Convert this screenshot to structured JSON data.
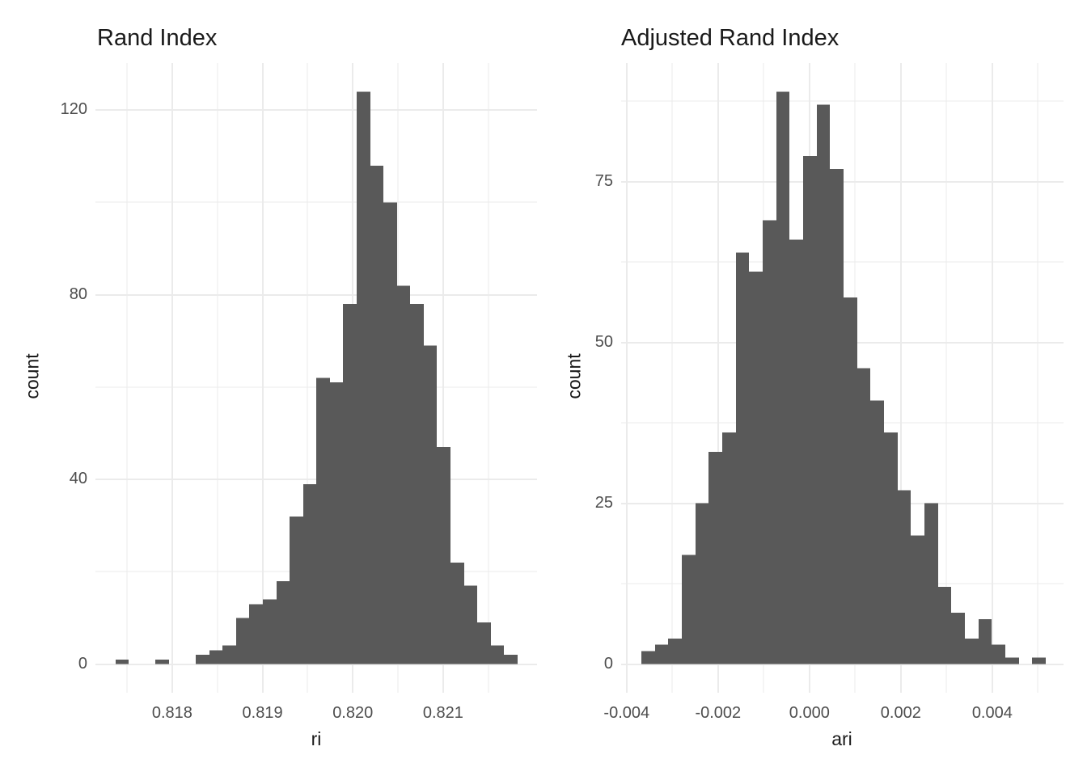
{
  "figure": {
    "background": "#ffffff",
    "bar_fill": "#595959",
    "grid_color": "#ebebeb",
    "tick_label_color": "#4d4d4d",
    "text_color": "#1a1a1a"
  },
  "chart_data": [
    {
      "type": "bar",
      "subtype": "histogram",
      "title": "Rand Index",
      "xlabel": "ri",
      "ylabel": "count",
      "grid": true,
      "legend_position": "none",
      "bar_color": "#595959",
      "xlim": [
        0.81715,
        0.82204
      ],
      "ylim": [
        -6.2,
        130.2
      ],
      "bin_start": 0.817372,
      "bin_width": 0.0001484,
      "counts": [
        1,
        0,
        0,
        1,
        0,
        0,
        2,
        3,
        4,
        10,
        13,
        14,
        18,
        32,
        39,
        62,
        61,
        78,
        124,
        108,
        100,
        82,
        78,
        69,
        47,
        22,
        17,
        9,
        4,
        2
      ],
      "x_major_ticks": [
        {
          "value": 0.818,
          "label": "0.818"
        },
        {
          "value": 0.819,
          "label": "0.819"
        },
        {
          "value": 0.82,
          "label": "0.820"
        },
        {
          "value": 0.821,
          "label": "0.821"
        }
      ],
      "x_minor_gridlines": [
        0.8175,
        0.8185,
        0.8195,
        0.8205,
        0.8215
      ],
      "y_major_ticks": [
        {
          "value": 0,
          "label": "0"
        },
        {
          "value": 40,
          "label": "40"
        },
        {
          "value": 80,
          "label": "80"
        },
        {
          "value": 120,
          "label": "120"
        }
      ],
      "y_minor_gridlines": [
        20,
        60,
        100
      ]
    },
    {
      "type": "bar",
      "subtype": "histogram",
      "title": "Adjusted Rand Index",
      "xlabel": "ari",
      "ylabel": "count",
      "grid": true,
      "legend_position": "none",
      "bar_color": "#595959",
      "xlim": [
        -0.00412,
        0.00556
      ],
      "ylim": [
        -4.45,
        93.45
      ],
      "bin_start": -0.003677,
      "bin_width": 0.000295,
      "counts": [
        2,
        3,
        4,
        17,
        25,
        33,
        36,
        64,
        61,
        69,
        89,
        66,
        79,
        87,
        77,
        57,
        46,
        41,
        36,
        27,
        20,
        25,
        12,
        8,
        4,
        7,
        3,
        1,
        0,
        1
      ],
      "x_major_ticks": [
        {
          "value": -0.004,
          "label": "-0.004"
        },
        {
          "value": -0.002,
          "label": "-0.002"
        },
        {
          "value": 0.0,
          "label": "0.000"
        },
        {
          "value": 0.002,
          "label": "0.002"
        },
        {
          "value": 0.004,
          "label": "0.004"
        }
      ],
      "x_minor_gridlines": [
        -0.003,
        -0.001,
        0.001,
        0.003,
        0.005
      ],
      "y_major_ticks": [
        {
          "value": 0,
          "label": "0"
        },
        {
          "value": 25,
          "label": "25"
        },
        {
          "value": 50,
          "label": "50"
        },
        {
          "value": 75,
          "label": "75"
        }
      ],
      "y_minor_gridlines": [
        12.5,
        37.5,
        62.5,
        87.5
      ]
    }
  ]
}
